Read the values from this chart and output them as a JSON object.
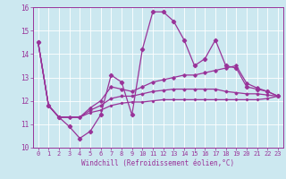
{
  "xlabel": "Windchill (Refroidissement éolien,°C)",
  "xlim": [
    -0.5,
    23.5
  ],
  "ylim": [
    10,
    16
  ],
  "xtick_vals": [
    0,
    1,
    2,
    3,
    4,
    5,
    6,
    7,
    8,
    9,
    10,
    11,
    12,
    13,
    14,
    15,
    16,
    17,
    18,
    19,
    20,
    21,
    22,
    23
  ],
  "xtick_labels": [
    "0",
    "1",
    "2",
    "3",
    "4",
    "5",
    "6",
    "7",
    "8",
    "9",
    "10",
    "11",
    "12",
    "13",
    "14",
    "15",
    "16",
    "17",
    "18",
    "19",
    "20",
    "21",
    "22",
    "23"
  ],
  "ytick_vals": [
    10,
    11,
    12,
    13,
    14,
    15,
    16
  ],
  "ytick_labels": [
    "10",
    "11",
    "12",
    "13",
    "14",
    "15",
    "16"
  ],
  "background_color": "#cce8f0",
  "line_color": "#993399",
  "grid_color": "#ffffff",
  "series": [
    [
      14.5,
      11.8,
      11.3,
      10.9,
      10.4,
      10.7,
      11.4,
      13.1,
      12.8,
      11.4,
      14.2,
      15.8,
      15.8,
      15.4,
      14.6,
      13.5,
      13.8,
      14.6,
      13.5,
      13.4,
      12.6,
      12.5,
      12.4,
      12.2
    ],
    [
      14.5,
      11.8,
      11.3,
      11.3,
      11.3,
      11.7,
      12.0,
      12.6,
      12.5,
      12.4,
      12.6,
      12.8,
      12.9,
      13.0,
      13.1,
      13.1,
      13.2,
      13.3,
      13.4,
      13.5,
      12.75,
      12.55,
      12.4,
      12.2
    ],
    [
      14.5,
      11.8,
      11.3,
      11.3,
      11.3,
      11.6,
      11.8,
      12.1,
      12.2,
      12.2,
      12.3,
      12.4,
      12.45,
      12.5,
      12.5,
      12.5,
      12.5,
      12.5,
      12.4,
      12.35,
      12.3,
      12.3,
      12.25,
      12.2
    ],
    [
      14.5,
      11.8,
      11.3,
      11.3,
      11.3,
      11.5,
      11.6,
      11.8,
      11.9,
      11.95,
      11.95,
      12.0,
      12.05,
      12.05,
      12.05,
      12.05,
      12.05,
      12.05,
      12.05,
      12.05,
      12.05,
      12.05,
      12.1,
      12.2
    ]
  ]
}
